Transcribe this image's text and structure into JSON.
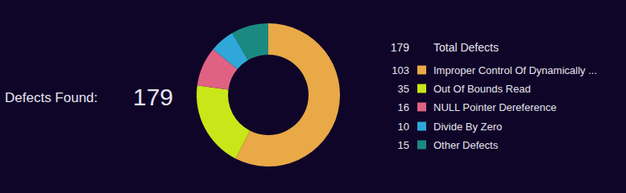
{
  "chart_data": {
    "type": "pie",
    "title": "Defects Found:",
    "total": 179,
    "total_label": "Total Defects",
    "categories": [
      "Improper Control Of Dynamically ...",
      "Out Of Bounds Read",
      "NULL Pointer Dereference",
      "Divide By Zero",
      "Other Defects"
    ],
    "values": [
      103,
      35,
      16,
      10,
      15
    ],
    "colors": [
      "#e8a946",
      "#c9e619",
      "#df6283",
      "#30a7d9",
      "#1a8a80"
    ]
  }
}
